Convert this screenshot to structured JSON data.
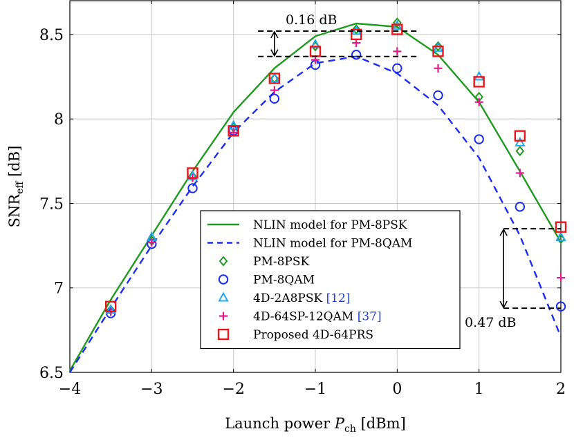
{
  "chart_data": {
    "type": "line",
    "xlabel": {
      "prefix": "Launch power ",
      "var": "P",
      "sub": "ch",
      "suffix": " [dBm]"
    },
    "ylabel": {
      "prefix": "SNR",
      "sub": "eff",
      "suffix": " [dB]"
    },
    "xlim": [
      -4,
      2
    ],
    "ylim": [
      6.5,
      8.7
    ],
    "xticks": [
      -4,
      -3,
      -2,
      -1,
      0,
      1,
      2
    ],
    "xtick_labels": [
      "−4",
      "−3",
      "−2",
      "−1",
      "0",
      "1",
      "2"
    ],
    "yticks": [
      6.5,
      7,
      7.5,
      8,
      8.5
    ],
    "ytick_labels": [
      "6.5",
      "7",
      "7.5",
      "8",
      "8.5"
    ],
    "grid": true,
    "legend_position": "center-bottom",
    "series": [
      {
        "name": "NLIN model for PM-8PSK",
        "kind": "line",
        "color": "#1e9a1e",
        "dash": "solid",
        "x": [
          -4,
          -3.5,
          -3,
          -2.5,
          -2,
          -1.5,
          -1,
          -0.5,
          0,
          0.5,
          1,
          1.5,
          2
        ],
        "y": [
          6.51,
          6.93,
          7.31,
          7.69,
          8.04,
          8.3,
          8.49,
          8.565,
          8.545,
          8.38,
          8.1,
          7.69,
          7.27
        ]
      },
      {
        "name": "NLIN model for PM-8QAM",
        "kind": "line",
        "color": "#1a2cf0",
        "dash": "dashed",
        "x": [
          -4,
          -3.5,
          -3,
          -2.5,
          -2,
          -1.5,
          -1,
          -0.5,
          0,
          0.5,
          1,
          1.5,
          2
        ],
        "y": [
          6.5,
          6.88,
          7.25,
          7.6,
          7.92,
          8.16,
          8.33,
          8.37,
          8.27,
          8.08,
          7.77,
          7.31,
          6.71
        ]
      },
      {
        "name": "PM-8PSK",
        "kind": "marker",
        "marker": "diamond",
        "color": "#1e9a1e",
        "x": [
          -3.5,
          -3,
          -2.5,
          -2,
          -1.5,
          -1,
          -0.5,
          0,
          0.5,
          1,
          1.5,
          2
        ],
        "y": [
          6.87,
          7.28,
          7.66,
          7.95,
          8.24,
          8.43,
          8.53,
          8.57,
          8.43,
          8.13,
          7.81,
          7.29
        ]
      },
      {
        "name": "PM-8QAM",
        "kind": "marker",
        "marker": "circle",
        "color": "#1a2cf0",
        "x": [
          -3.5,
          -3,
          -2.5,
          -2,
          -1.5,
          -1,
          -0.5,
          0,
          0.5,
          1,
          1.5,
          2
        ],
        "y": [
          6.85,
          7.26,
          7.59,
          7.93,
          8.12,
          8.32,
          8.38,
          8.3,
          8.14,
          7.88,
          7.48,
          6.89
        ]
      },
      {
        "name": "4D-2A8PSK",
        "ref": "[12]",
        "kind": "marker",
        "marker": "triangle",
        "color": "#22a8ee",
        "x": [
          -3.5,
          -3,
          -2.5,
          -2,
          -1.5,
          -1,
          -0.5,
          0,
          0.5,
          1,
          1.5,
          2
        ],
        "y": [
          6.87,
          7.3,
          7.66,
          7.96,
          8.24,
          8.44,
          8.52,
          8.55,
          8.42,
          8.25,
          7.86,
          7.3
        ]
      },
      {
        "name": "4D-64SP-12QAM",
        "ref": "[37]",
        "kind": "marker",
        "marker": "plus",
        "color": "#e6198c",
        "x": [
          -3.5,
          -3,
          -2.5,
          -2,
          -1.5,
          -1,
          -0.5,
          0,
          0.5,
          1,
          1.5,
          2
        ],
        "y": [
          6.86,
          7.27,
          7.65,
          7.92,
          8.17,
          8.35,
          8.45,
          8.4,
          8.3,
          8.1,
          7.68,
          7.06
        ]
      },
      {
        "name": "Proposed 4D-64PRS",
        "kind": "marker",
        "marker": "square",
        "color": "#e8161b",
        "x": [
          -3.5,
          -2.5,
          -2,
          -1.5,
          -1,
          -0.5,
          0,
          0.5,
          1,
          1.5,
          2
        ],
        "y": [
          6.89,
          7.68,
          7.93,
          8.24,
          8.4,
          8.5,
          8.53,
          8.4,
          8.22,
          7.9,
          7.36
        ]
      }
    ],
    "annotations": [
      {
        "text": "0.16 dB",
        "x_range": [
          -1.7,
          0.25
        ],
        "y_top": 8.52,
        "y_bottom": 8.37,
        "arrow_x": -1.5
      },
      {
        "text": "0.47 dB",
        "x_range": [
          1.3,
          2.0
        ],
        "y_top": 7.35,
        "y_bottom": 6.88,
        "arrow_x": 1.3
      }
    ]
  }
}
